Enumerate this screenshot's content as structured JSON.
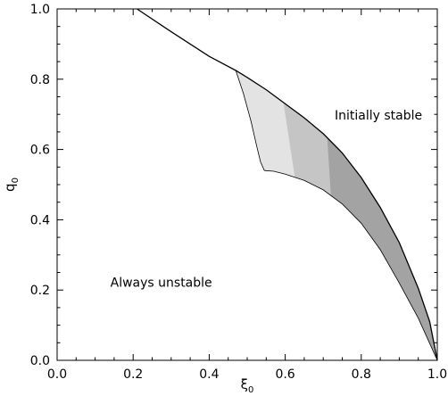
{
  "chart_data": {
    "type": "area",
    "title": "",
    "xlabel": "ξ",
    "xlabel_sub": "0",
    "ylabel": "q",
    "ylabel_sub": "0",
    "xlim": [
      0.0,
      1.0
    ],
    "ylim": [
      0.0,
      1.0
    ],
    "x_ticks": [
      0.0,
      0.2,
      0.4,
      0.6,
      0.8,
      1.0
    ],
    "y_ticks": [
      0.0,
      0.2,
      0.4,
      0.6,
      0.8,
      1.0
    ],
    "x_tick_labels": [
      "0.0",
      "0.2",
      "0.4",
      "0.6",
      "0.8",
      "1.0"
    ],
    "y_tick_labels": [
      "0.0",
      "0.2",
      "0.4",
      "0.6",
      "0.8",
      "1.0"
    ],
    "grid": false,
    "annotations": [
      {
        "text": "Initially stable",
        "x": 0.73,
        "y": 0.685
      },
      {
        "text": "Always unstable",
        "x": 0.14,
        "y": 0.21
      }
    ],
    "boundary_curve": {
      "x": [
        0.21,
        0.3,
        0.4,
        0.47,
        0.5,
        0.55,
        0.6,
        0.65,
        0.7,
        0.75,
        0.8,
        0.85,
        0.9,
        0.95,
        0.98,
        1.0
      ],
      "y": [
        1.0,
        0.935,
        0.865,
        0.825,
        0.805,
        0.77,
        0.73,
        0.69,
        0.645,
        0.59,
        0.52,
        0.435,
        0.335,
        0.205,
        0.11,
        0.0
      ]
    },
    "inner_curve": {
      "x": [
        0.545,
        0.57,
        0.6,
        0.65,
        0.7,
        0.75,
        0.8,
        0.85,
        0.9,
        0.95,
        1.0
      ],
      "y": [
        0.54,
        0.538,
        0.53,
        0.512,
        0.485,
        0.445,
        0.39,
        0.315,
        0.22,
        0.12,
        0.0
      ]
    },
    "left_edge": {
      "x": [
        0.47,
        0.49,
        0.51,
        0.525,
        0.535,
        0.545
      ],
      "y": [
        0.825,
        0.76,
        0.68,
        0.61,
        0.565,
        0.54
      ]
    },
    "shaded_regions": [
      {
        "color": "#e3e3e3",
        "x_top_start": 0.47,
        "x_top_end": 0.595,
        "x_bottom_start": 0.545,
        "x_bottom_end": 0.625
      },
      {
        "color": "#c5c5c5",
        "x_top_start": 0.595,
        "x_top_end": 0.71,
        "x_bottom_start": 0.625,
        "x_bottom_end": 0.72
      },
      {
        "color": "#a3a3a3",
        "x_top_start": 0.71,
        "x_top_end": 1.0,
        "x_bottom_start": 0.72,
        "x_bottom_end": 1.0
      }
    ]
  }
}
